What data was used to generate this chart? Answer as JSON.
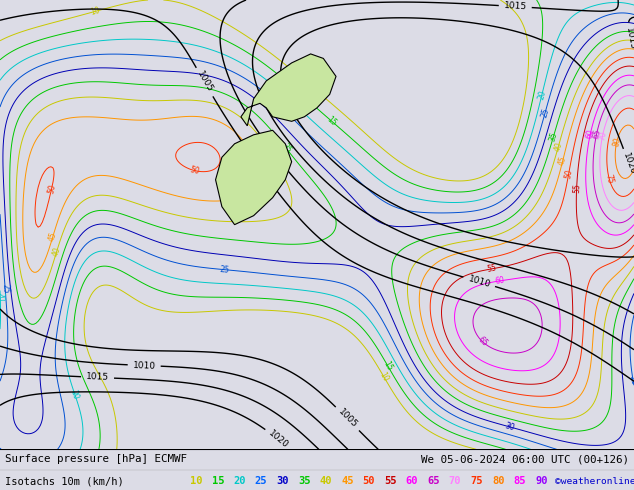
{
  "title_left": "Surface pressure [hPa] ECMWF",
  "title_right": "We 05-06-2024 06:00 UTC (00+126)",
  "legend_label": "Isotachs 10m (km/h)",
  "copyright": "©weatheronline.co.uk",
  "isotach_values": [
    10,
    15,
    20,
    25,
    30,
    35,
    40,
    45,
    50,
    55,
    60,
    65,
    70,
    75,
    80,
    85,
    90
  ],
  "isotach_colors": [
    "#c8c800",
    "#00c800",
    "#00c8c8",
    "#0064ff",
    "#0000c8",
    "#00c800",
    "#c8c800",
    "#ff9600",
    "#ff3200",
    "#c80000",
    "#ff00ff",
    "#c800c8",
    "#ff80ff",
    "#ff3200",
    "#ff8000",
    "#ff00ff",
    "#9600ff"
  ],
  "map_bg": "#dcdce6",
  "land_color": "#c8e6a0",
  "legend_bg": "#f0f0f0",
  "fig_width": 6.34,
  "fig_height": 4.9,
  "dpi": 100
}
